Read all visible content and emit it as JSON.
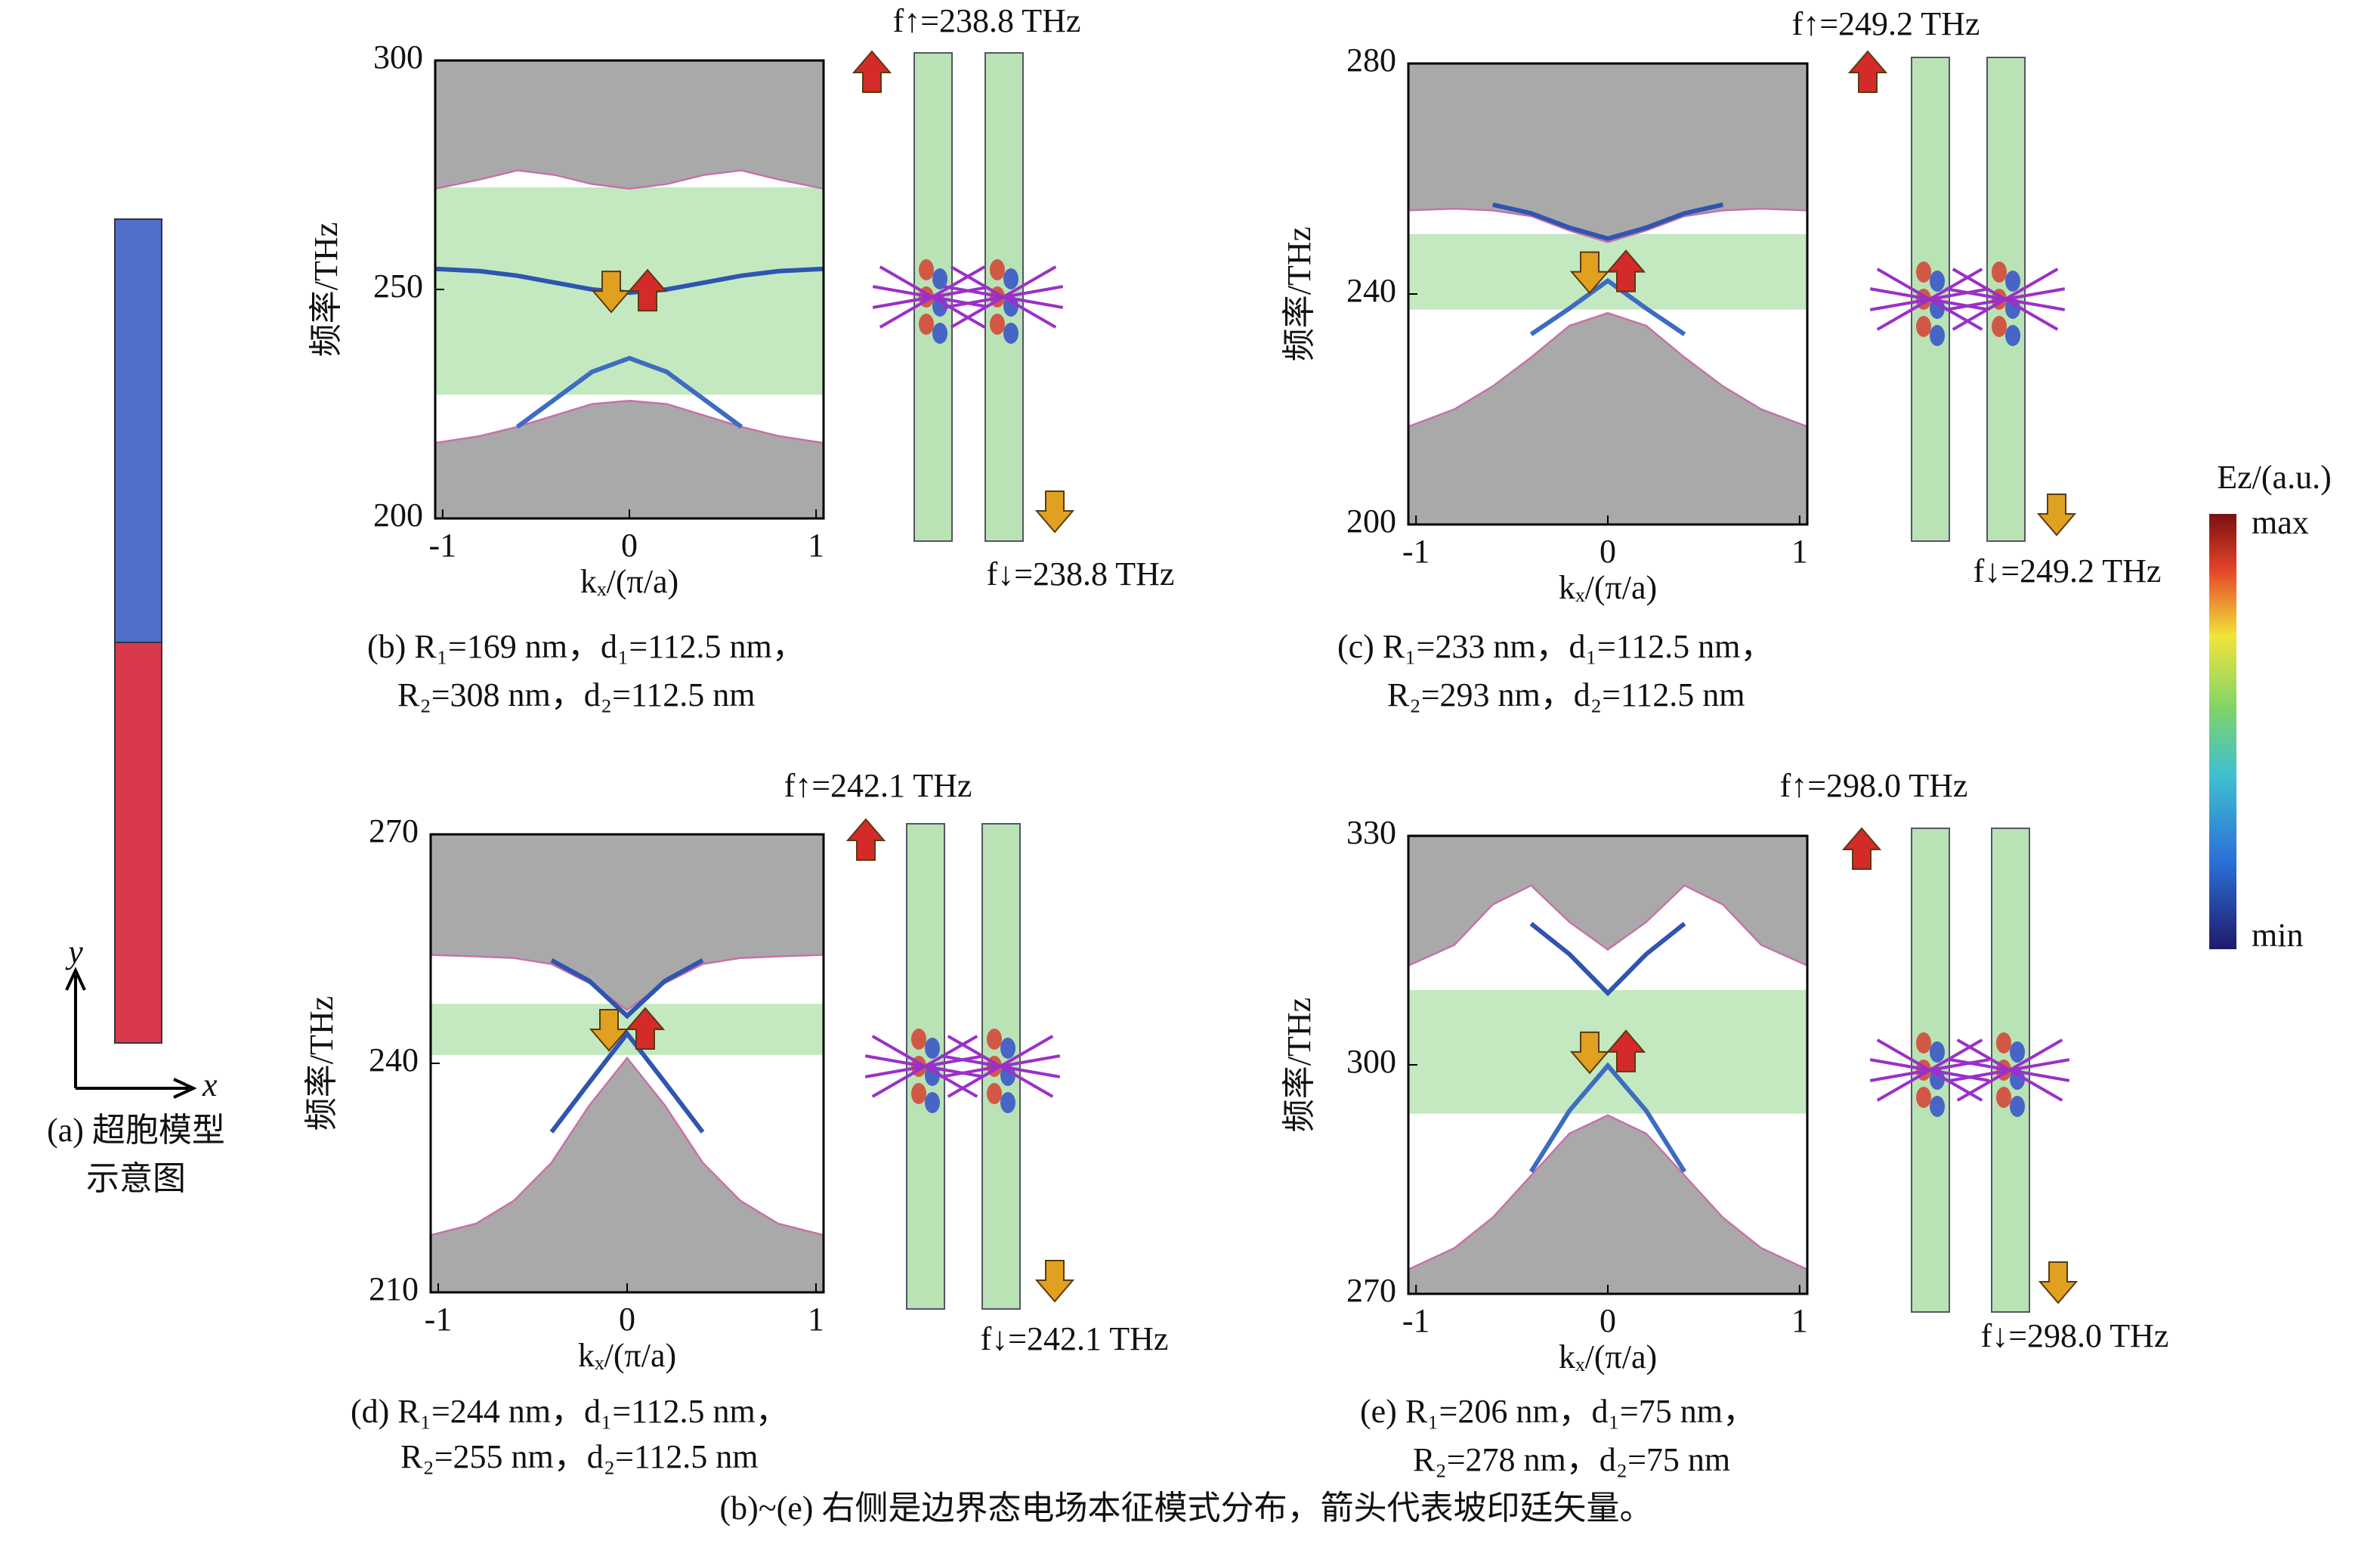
{
  "chart_data": [
    {
      "type": "band",
      "ylabel": "频率/THz",
      "xlabel": "kₓ/(π/a)",
      "freq_up": "f↑=238.8 THz",
      "freq_down": "f↓=238.8 THz",
      "caption": [
        "(b) R₁=169 nm，d₁=112.5 nm，",
        "R₂=308 nm，d₂=112.5 nm"
      ],
      "xlim": [
        -1.04,
        1.04
      ],
      "xticks": [
        -1,
        0,
        1
      ],
      "ylim": [
        200,
        300
      ],
      "yticks": [
        200,
        250,
        300
      ],
      "gap_band": [
        227,
        272.3
      ],
      "gap_color": "#c4e9c0",
      "line_color": "#c86fa8",
      "x": [
        -1.04,
        -0.8,
        -0.6,
        -0.4,
        -0.2,
        0,
        0.2,
        0.4,
        0.6,
        0.8,
        1.04
      ],
      "series": [
        {
          "fill": "above",
          "color": "#a9a9a9",
          "values": [
            272,
            274,
            276,
            275,
            273,
            272,
            273,
            275,
            276,
            274,
            272
          ]
        },
        {
          "fill": "below",
          "color": "#a9a9a9",
          "values": [
            216.5,
            218,
            220,
            222.5,
            225,
            225.7,
            225,
            222.5,
            220,
            218,
            216.5
          ]
        },
        {
          "color": "#2f55b0",
          "values": [
            254.5,
            254,
            253,
            251.5,
            250,
            249.3,
            250,
            251.5,
            253,
            254,
            254.5
          ]
        },
        {
          "color": "#3d6cc0",
          "values": [
            null,
            null,
            220,
            226,
            232,
            235,
            232,
            226,
            220,
            null,
            null
          ]
        }
      ]
    },
    {
      "type": "band",
      "ylabel": "频率/THz",
      "xlabel": "kₓ/(π/a)",
      "freq_up": "f↑=249.2 THz",
      "freq_down": "f↓=249.2 THz",
      "caption": [
        "(c) R₁=233 nm，d₁=112.5 nm，",
        "R₂=293 nm，d₂=112.5 nm"
      ],
      "xlim": [
        -1.04,
        1.04
      ],
      "xticks": [
        -1,
        0,
        1
      ],
      "ylim": [
        200,
        280
      ],
      "yticks": [
        200,
        240,
        280
      ],
      "gap_band": [
        237.3,
        250.4
      ],
      "gap_color": "#c4e9c0",
      "line_color": "#c86fa8",
      "x": [
        -1.04,
        -0.8,
        -0.6,
        -0.4,
        -0.2,
        0,
        0.2,
        0.4,
        0.6,
        0.8,
        1.04
      ],
      "series": [
        {
          "fill": "above",
          "color": "#a9a9a9",
          "values": [
            254.5,
            254.8,
            254.5,
            253.5,
            251,
            249,
            251,
            253.5,
            254.5,
            254.8,
            254.5
          ]
        },
        {
          "fill": "below",
          "color": "#a9a9a9",
          "values": [
            217,
            220,
            224,
            229,
            234.5,
            236.7,
            234.5,
            229,
            224,
            220,
            217
          ]
        },
        {
          "color": "#2f55b0",
          "values": [
            null,
            null,
            255.5,
            254,
            251.5,
            249.6,
            251.5,
            254,
            255.5,
            null,
            null
          ]
        },
        {
          "color": "#3d6cc0",
          "values": [
            null,
            null,
            null,
            233,
            237.5,
            242.3,
            237.5,
            233,
            null,
            null,
            null
          ]
        }
      ]
    },
    {
      "type": "band",
      "ylabel": "频率/THz",
      "xlabel": "kₓ/(π/a)",
      "freq_up": "f↑=242.1 THz",
      "freq_down": "f↓=242.1 THz",
      "caption": [
        "(d) R₁=244 nm，d₁=112.5 nm，",
        "R₂=255 nm，d₂=112.5 nm"
      ],
      "xlim": [
        -1.04,
        1.04
      ],
      "xticks": [
        -1,
        0,
        1
      ],
      "ylim": [
        210,
        270
      ],
      "yticks": [
        210,
        240,
        270
      ],
      "gap_band": [
        241.1,
        247.8
      ],
      "gap_color": "#c4e9c0",
      "line_color": "#c86fa8",
      "x": [
        -1.04,
        -0.8,
        -0.6,
        -0.4,
        -0.2,
        0,
        0.2,
        0.4,
        0.6,
        0.8,
        1.04
      ],
      "series": [
        {
          "fill": "above",
          "color": "#a9a9a9",
          "values": [
            254.2,
            254,
            253.8,
            253,
            250.5,
            247,
            250.5,
            253,
            253.8,
            254,
            254.2
          ]
        },
        {
          "fill": "below",
          "color": "#a9a9a9",
          "values": [
            217.5,
            219,
            222,
            227,
            234.5,
            240.7,
            234.5,
            227,
            222,
            219,
            217.5
          ]
        },
        {
          "color": "#2f55b0",
          "values": [
            null,
            null,
            null,
            253.5,
            250.8,
            246.2,
            250.8,
            253.5,
            null,
            null,
            null
          ]
        },
        {
          "color": "#2f55b0",
          "values": [
            null,
            null,
            null,
            231,
            237.5,
            243.9,
            237.5,
            231,
            null,
            null,
            null
          ]
        }
      ]
    },
    {
      "type": "band",
      "ylabel": "频率/THz",
      "xlabel": "kₓ/(π/a)",
      "freq_up": "f↑=298.0 THz",
      "freq_down": "f↓=298.0 THz",
      "caption": [
        "(e) R₁=206 nm，d₁=75 nm，",
        "R₂=278 nm，d₂=75 nm"
      ],
      "xlim": [
        -1.04,
        1.04
      ],
      "xticks": [
        -1,
        0,
        1
      ],
      "ylim": [
        270,
        330
      ],
      "yticks": [
        270,
        300,
        330
      ],
      "gap_band": [
        293.6,
        309.8
      ],
      "gap_color": "#c4e9c0",
      "line_color": "#c86fa8",
      "x": [
        -1.04,
        -0.8,
        -0.6,
        -0.4,
        -0.2,
        0,
        0.2,
        0.4,
        0.6,
        0.8,
        1.04
      ],
      "series": [
        {
          "fill": "above",
          "color": "#a9a9a9",
          "values": [
            313,
            315.7,
            321,
            323.5,
            318.7,
            315.1,
            318.7,
            323.5,
            321,
            315.7,
            313
          ]
        },
        {
          "fill": "below",
          "color": "#a9a9a9",
          "values": [
            273.2,
            276,
            280,
            285.5,
            291,
            293.4,
            291,
            285.5,
            280,
            276,
            273.2
          ]
        },
        {
          "color": "#2f55b0",
          "values": [
            null,
            null,
            null,
            318.5,
            314.5,
            309.4,
            314.5,
            318.5,
            null,
            null,
            null
          ]
        },
        {
          "color": "#3d6cc0",
          "values": [
            null,
            null,
            null,
            286,
            294,
            299.9,
            294,
            286,
            null,
            null,
            null
          ]
        }
      ]
    }
  ],
  "panel_a": {
    "y_label": "y",
    "x_label": "x",
    "caption": [
      "(a) 超胞模型",
      "示意图"
    ]
  },
  "colorbar": {
    "title": "Ez/(a.u.)",
    "max_label": "max",
    "min_label": "min"
  },
  "caption": "(b)~(e) 右侧是边界态电场本征模式分布，箭头代表坡印廷矢量。"
}
